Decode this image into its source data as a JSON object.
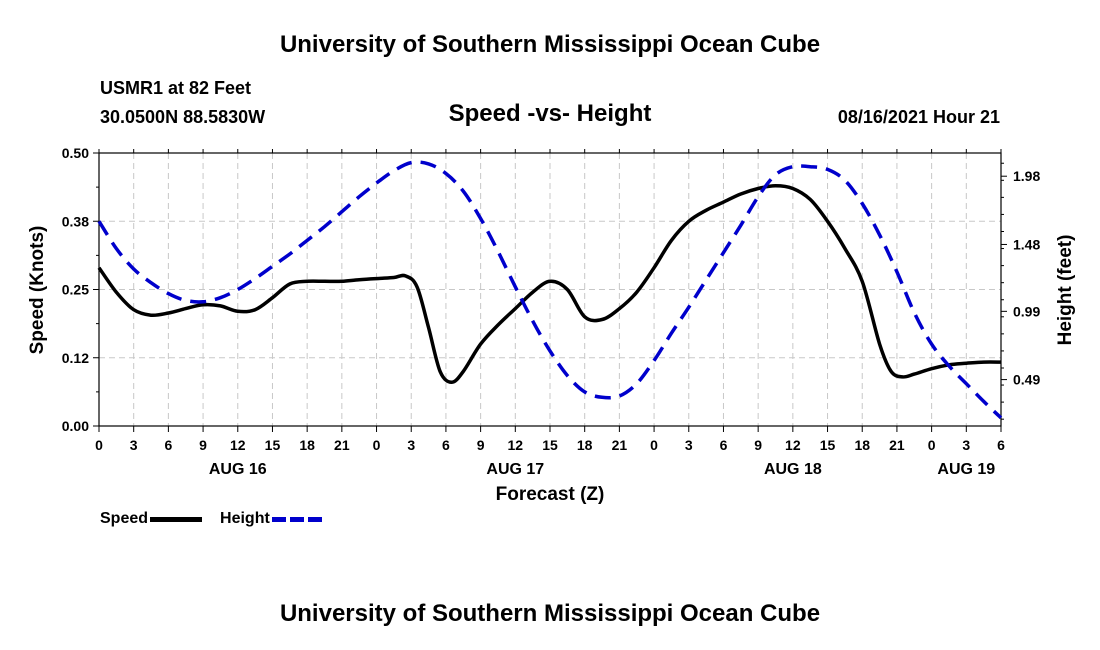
{
  "page": {
    "title": "University of Southern Mississippi Ocean Cube",
    "footer_title": "University of Southern Mississippi Ocean Cube",
    "station": "USMR1 at 82 Feet",
    "coords": "30.0500N  88.5830W",
    "chart_title": "Speed -vs- Height",
    "datetime": "08/16/2021 Hour 21"
  },
  "legend": {
    "speed_label": "Speed",
    "height_label": "Height"
  },
  "colors": {
    "speed": "#000000",
    "height": "#0000cc",
    "grid": "#c8c8c8"
  },
  "chart_data": {
    "type": "line",
    "title": "Speed -vs- Height",
    "xlabel": "Forecast (Z)",
    "ylabel": "Speed (Knots)",
    "y2label": "Height (feet)",
    "xlim": [
      0,
      78
    ],
    "ylim": [
      0,
      0.5
    ],
    "y2lim": [
      0.15,
      2.15
    ],
    "grid": true,
    "legend_position": "bottom-left",
    "x_ticks": [
      0,
      3,
      6,
      9,
      12,
      15,
      18,
      21,
      24,
      27,
      30,
      33,
      36,
      39,
      42,
      45,
      48,
      51,
      54,
      57,
      60,
      63,
      66,
      69,
      72,
      75,
      78
    ],
    "x_tick_labels": [
      "0",
      "3",
      "6",
      "9",
      "12",
      "15",
      "18",
      "21",
      "0",
      "3",
      "6",
      "9",
      "12",
      "15",
      "18",
      "21",
      "0",
      "3",
      "6",
      "9",
      "12",
      "15",
      "18",
      "21",
      "0",
      "3",
      "6"
    ],
    "date_labels": [
      {
        "x": 12,
        "label": "AUG 16"
      },
      {
        "x": 36,
        "label": "AUG 17"
      },
      {
        "x": 60,
        "label": "AUG 18"
      },
      {
        "x": 75,
        "label": "AUG 19"
      }
    ],
    "y_ticks": [
      0,
      0.125,
      0.25,
      0.375,
      0.5
    ],
    "y_tick_labels": [
      "0.00",
      "0.12",
      "0.25",
      "0.38",
      "0.50"
    ],
    "y2_ticks": [
      0.49,
      0.99,
      1.48,
      1.98
    ],
    "y2_tick_labels": [
      "0.49",
      "0.99",
      "1.48",
      "1.98"
    ],
    "series": [
      {
        "name": "Speed",
        "axis": "left",
        "style": "solid",
        "x": [
          0,
          1.5,
          3,
          4.5,
          6,
          7.5,
          9,
          10.5,
          12,
          13.5,
          15,
          16.5,
          18,
          19.5,
          21,
          22.5,
          24,
          25.5,
          26.5,
          27.5,
          28.5,
          29.5,
          30.5,
          31.5,
          33,
          34.5,
          36,
          37.5,
          39,
          40.5,
          42,
          43.5,
          45,
          46.5,
          48,
          49.5,
          51,
          52.5,
          54,
          55.5,
          57,
          58.5,
          60,
          61.5,
          63,
          64.5,
          66,
          67.5,
          68.5,
          69.5,
          70.5,
          72,
          73.5,
          75,
          76.5,
          78
        ],
        "values": [
          0.29,
          0.245,
          0.213,
          0.203,
          0.207,
          0.215,
          0.222,
          0.22,
          0.21,
          0.213,
          0.235,
          0.26,
          0.265,
          0.265,
          0.265,
          0.268,
          0.27,
          0.272,
          0.275,
          0.255,
          0.18,
          0.1,
          0.08,
          0.1,
          0.15,
          0.185,
          0.215,
          0.245,
          0.265,
          0.25,
          0.2,
          0.195,
          0.215,
          0.245,
          0.29,
          0.34,
          0.375,
          0.395,
          0.41,
          0.425,
          0.435,
          0.44,
          0.435,
          0.415,
          0.375,
          0.325,
          0.265,
          0.15,
          0.1,
          0.09,
          0.095,
          0.105,
          0.112,
          0.115,
          0.117,
          0.117
        ]
      },
      {
        "name": "Height",
        "axis": "right",
        "style": "dashed",
        "x": [
          0,
          1.5,
          3,
          4.5,
          6,
          7.5,
          9,
          10.5,
          12,
          13.5,
          15,
          16.5,
          18,
          19.5,
          21,
          22.5,
          24,
          25.5,
          27,
          28.5,
          30,
          31.5,
          33,
          34.5,
          36,
          37.5,
          39,
          40.5,
          42,
          43.5,
          45,
          46.5,
          48,
          49.5,
          51,
          52.5,
          54,
          55.5,
          57,
          58.5,
          60,
          61.5,
          63,
          64.5,
          66,
          67.5,
          69,
          70.5,
          72,
          73.5,
          75,
          76.5,
          78
        ],
        "values": [
          1.65,
          1.45,
          1.3,
          1.2,
          1.12,
          1.07,
          1.06,
          1.09,
          1.15,
          1.23,
          1.32,
          1.41,
          1.51,
          1.61,
          1.72,
          1.83,
          1.93,
          2.02,
          2.08,
          2.07,
          2.0,
          1.87,
          1.67,
          1.43,
          1.17,
          0.92,
          0.7,
          0.52,
          0.4,
          0.36,
          0.37,
          0.46,
          0.63,
          0.83,
          1.02,
          1.22,
          1.42,
          1.62,
          1.83,
          1.99,
          2.05,
          2.05,
          2.03,
          1.95,
          1.78,
          1.55,
          1.28,
          0.98,
          0.75,
          0.59,
          0.46,
          0.33,
          0.21
        ]
      }
    ]
  }
}
